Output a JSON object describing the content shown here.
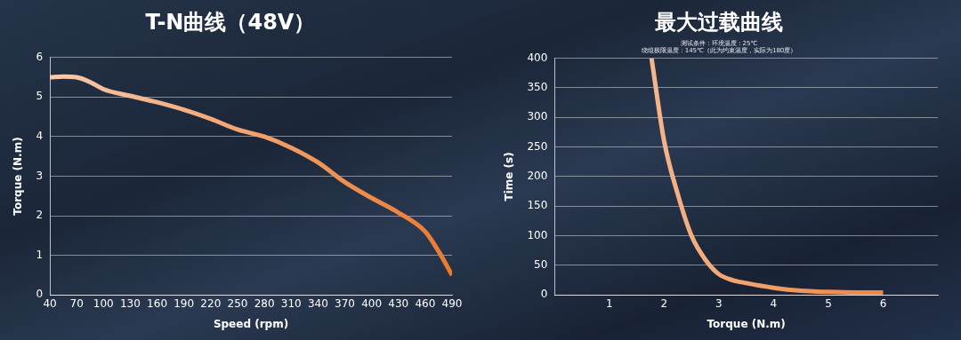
{
  "chart_data": [
    {
      "type": "line",
      "title": "T-N曲线（48V）",
      "x_label": "Speed (rpm)",
      "y_label": "Torque (N.m)",
      "x": [
        40,
        55,
        70,
        85,
        100,
        130,
        160,
        190,
        220,
        250,
        280,
        310,
        340,
        370,
        400,
        430,
        460,
        475,
        490
      ],
      "values": [
        5.5,
        5.52,
        5.5,
        5.38,
        5.2,
        5.03,
        4.87,
        4.68,
        4.45,
        4.18,
        4.0,
        3.72,
        3.35,
        2.85,
        2.45,
        2.08,
        1.6,
        1.1,
        0.5
      ],
      "color": "#ec7a30",
      "xlim": [
        40,
        490
      ],
      "xticks": [
        40,
        70,
        100,
        130,
        160,
        190,
        220,
        250,
        280,
        310,
        340,
        370,
        400,
        430,
        460,
        490
      ],
      "ylim": [
        0,
        6
      ],
      "yticks": [
        0,
        1,
        2,
        3,
        4,
        5,
        6
      ],
      "grid": "y"
    },
    {
      "type": "line",
      "title": "最大过载曲线",
      "subtitle": [
        "测试条件：环境温度：25℃",
        "绕组极限温度：145℃（此为约束温度，实际为180度）"
      ],
      "x_label": "Torque (N.m)",
      "y_label": "Time (s)",
      "x": [
        1.77,
        2,
        2.25,
        2.5,
        2.75,
        3,
        3.25,
        3.5,
        4,
        4.5,
        5,
        5.5,
        6
      ],
      "values": [
        400,
        260,
        170,
        100,
        60,
        35,
        25,
        20,
        12,
        7,
        5,
        4,
        4
      ],
      "color": "#ec7a30",
      "xlim": [
        0,
        7
      ],
      "xticks": [
        1,
        2,
        3,
        4,
        5,
        6
      ],
      "ylim": [
        0,
        400
      ],
      "yticks": [
        0,
        50,
        100,
        150,
        200,
        250,
        300,
        350,
        400
      ],
      "grid": "y"
    }
  ]
}
